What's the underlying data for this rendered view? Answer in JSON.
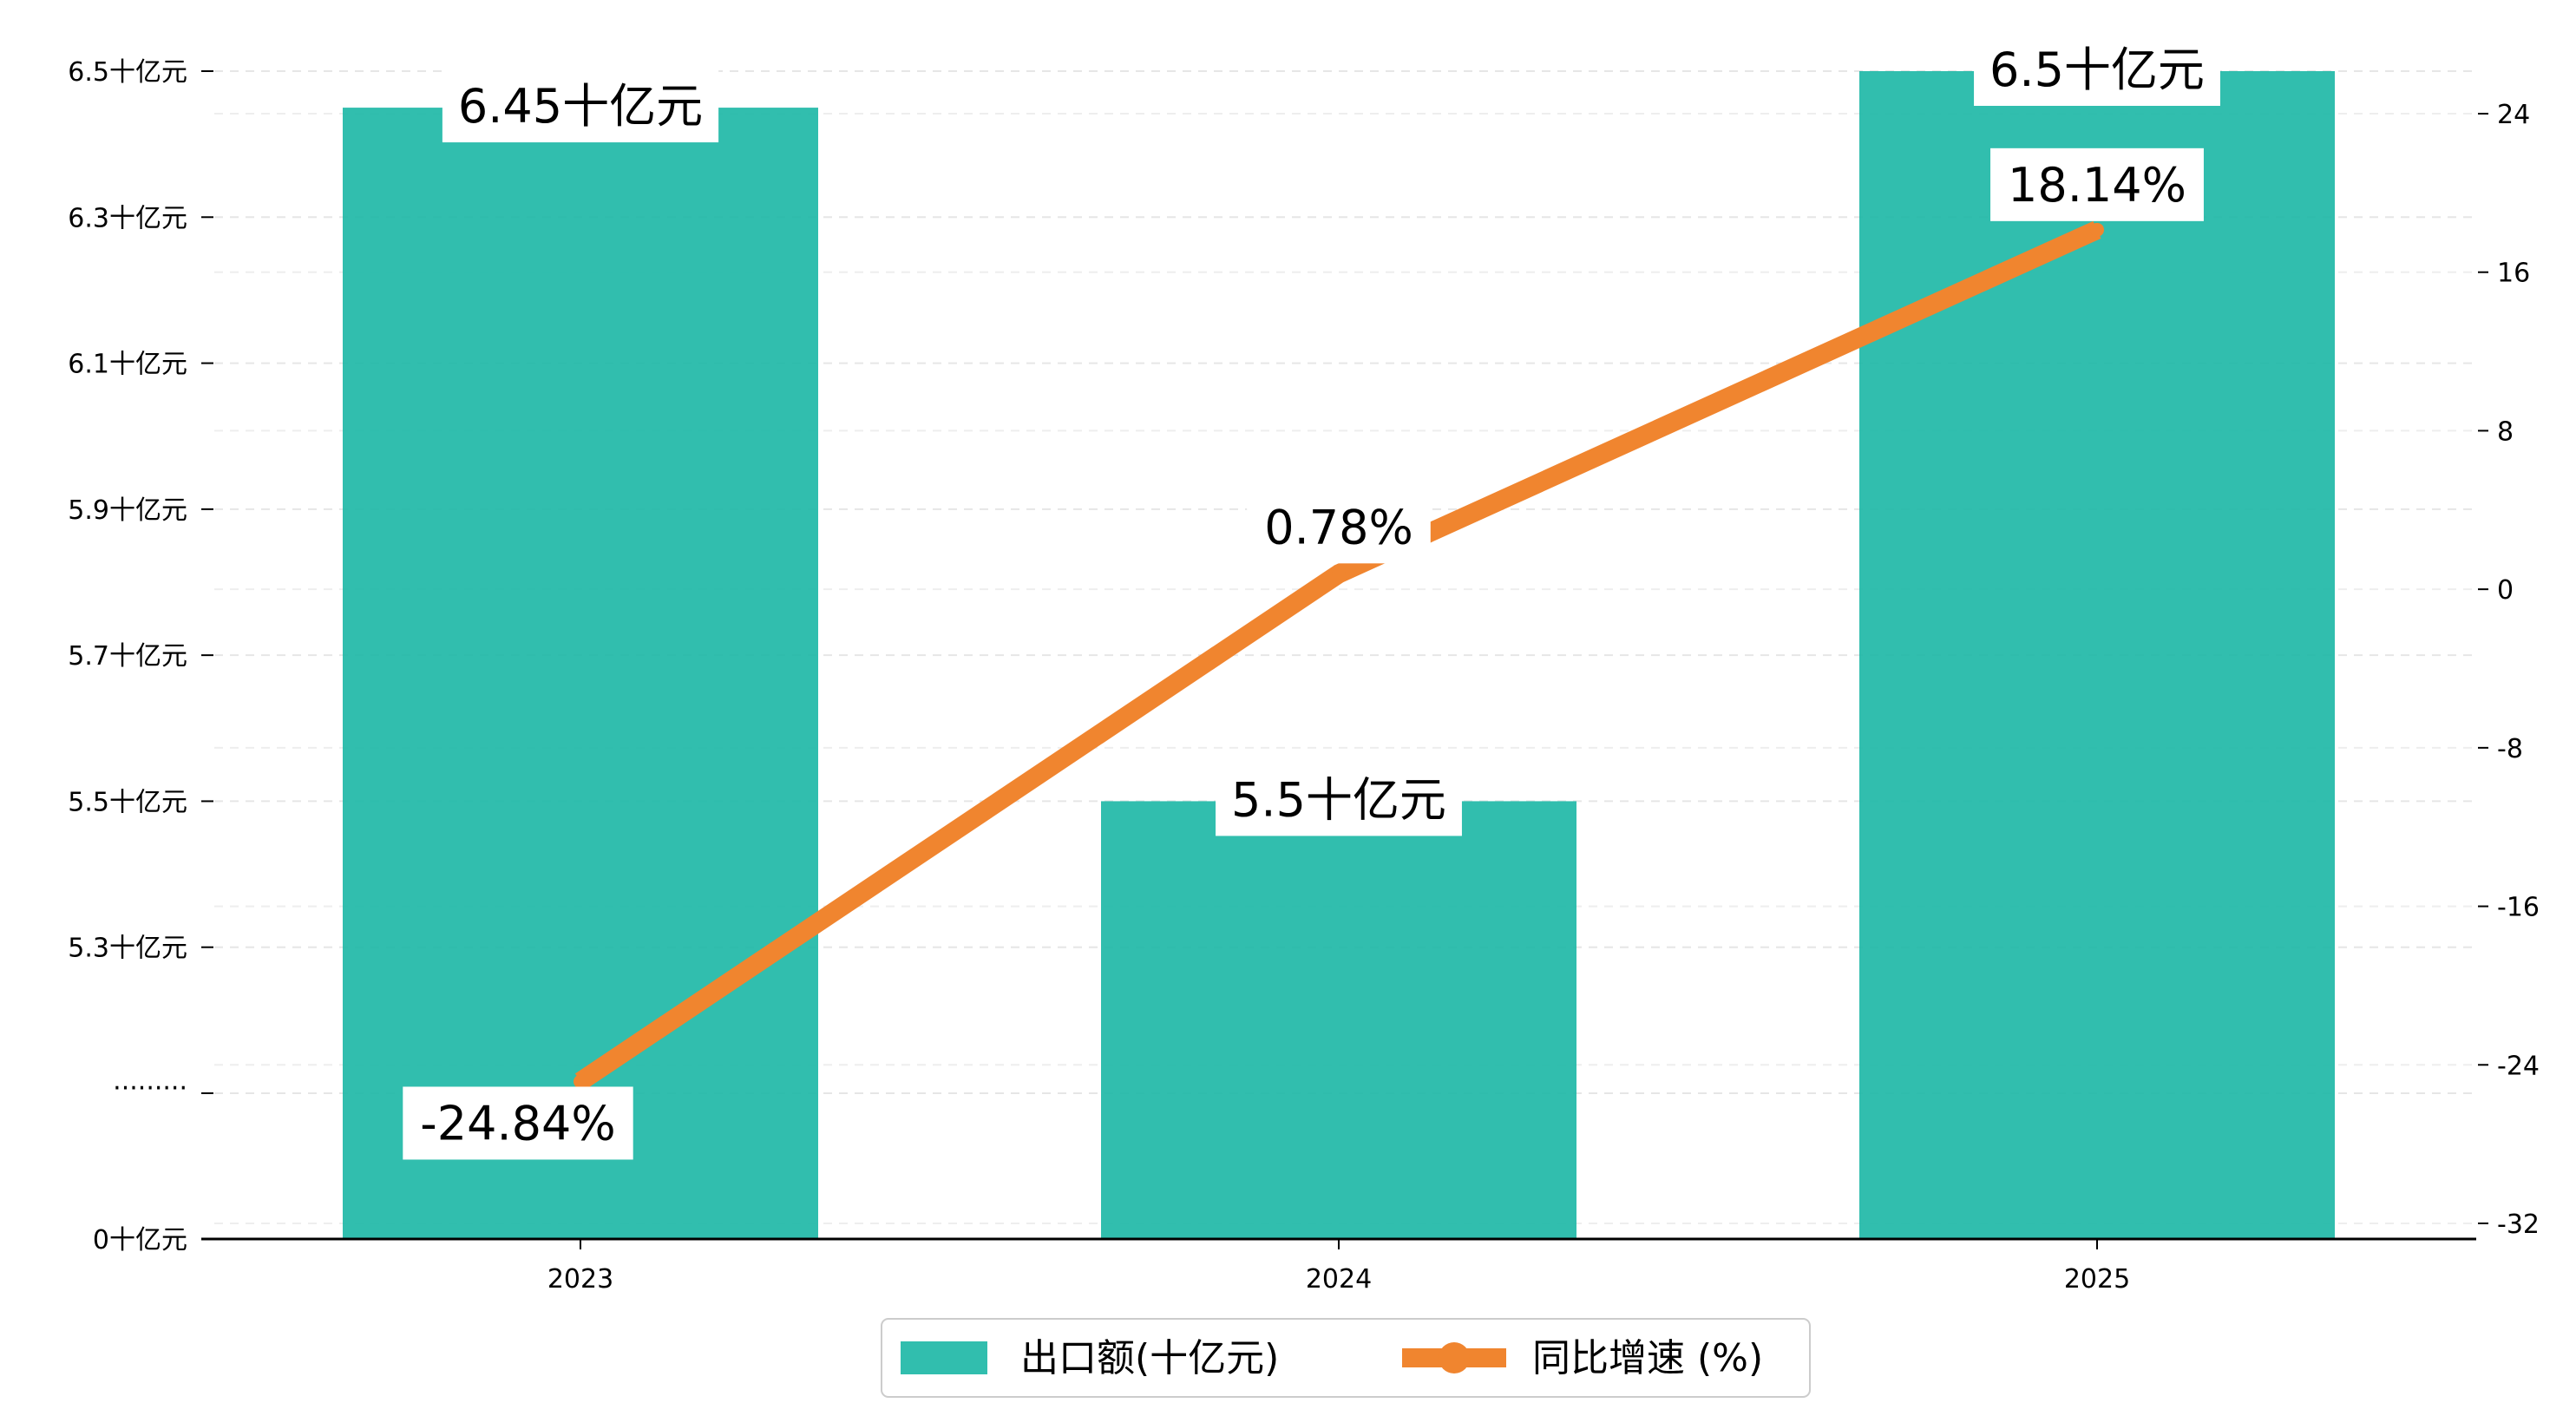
{
  "chart_data": {
    "type": "bar",
    "categories": [
      "2023",
      "2024",
      "2025"
    ],
    "series": [
      {
        "name": "出口额(十亿元)",
        "type": "bar",
        "axis": "left",
        "values": [
          6.45,
          5.5,
          6.5
        ],
        "labels": [
          "6.45十亿元",
          "5.5十亿元",
          "6.5十亿元"
        ],
        "color": "#1fb8a7"
      },
      {
        "name": "同比增速 (%)",
        "type": "line",
        "axis": "right",
        "values": [
          -24.84,
          0.78,
          18.14
        ],
        "labels": [
          "-24.84%",
          "0.78%",
          "18.14%"
        ],
        "color": "#f0852f"
      }
    ],
    "left_axis": {
      "broken": true,
      "break_label": "·········",
      "ticks": [
        {
          "value": 0,
          "label": "0十亿元"
        },
        {
          "value": 5.3,
          "label": "5.3十亿元"
        },
        {
          "value": 5.5,
          "label": "5.5十亿元"
        },
        {
          "value": 5.7,
          "label": "5.7十亿元"
        },
        {
          "value": 5.9,
          "label": "5.9十亿元"
        },
        {
          "value": 6.1,
          "label": "6.1十亿元"
        },
        {
          "value": 6.3,
          "label": "6.3十亿元"
        },
        {
          "value": 6.5,
          "label": "6.5十亿元"
        }
      ],
      "ylim": [
        0,
        6.5
      ]
    },
    "right_axis": {
      "ticks": [
        -32,
        -24,
        -16,
        -8,
        0,
        8,
        16,
        24
      ],
      "ylim": [
        -32,
        26
      ]
    },
    "grid": "horizontal dashed",
    "legend_position": "bottom-center"
  }
}
